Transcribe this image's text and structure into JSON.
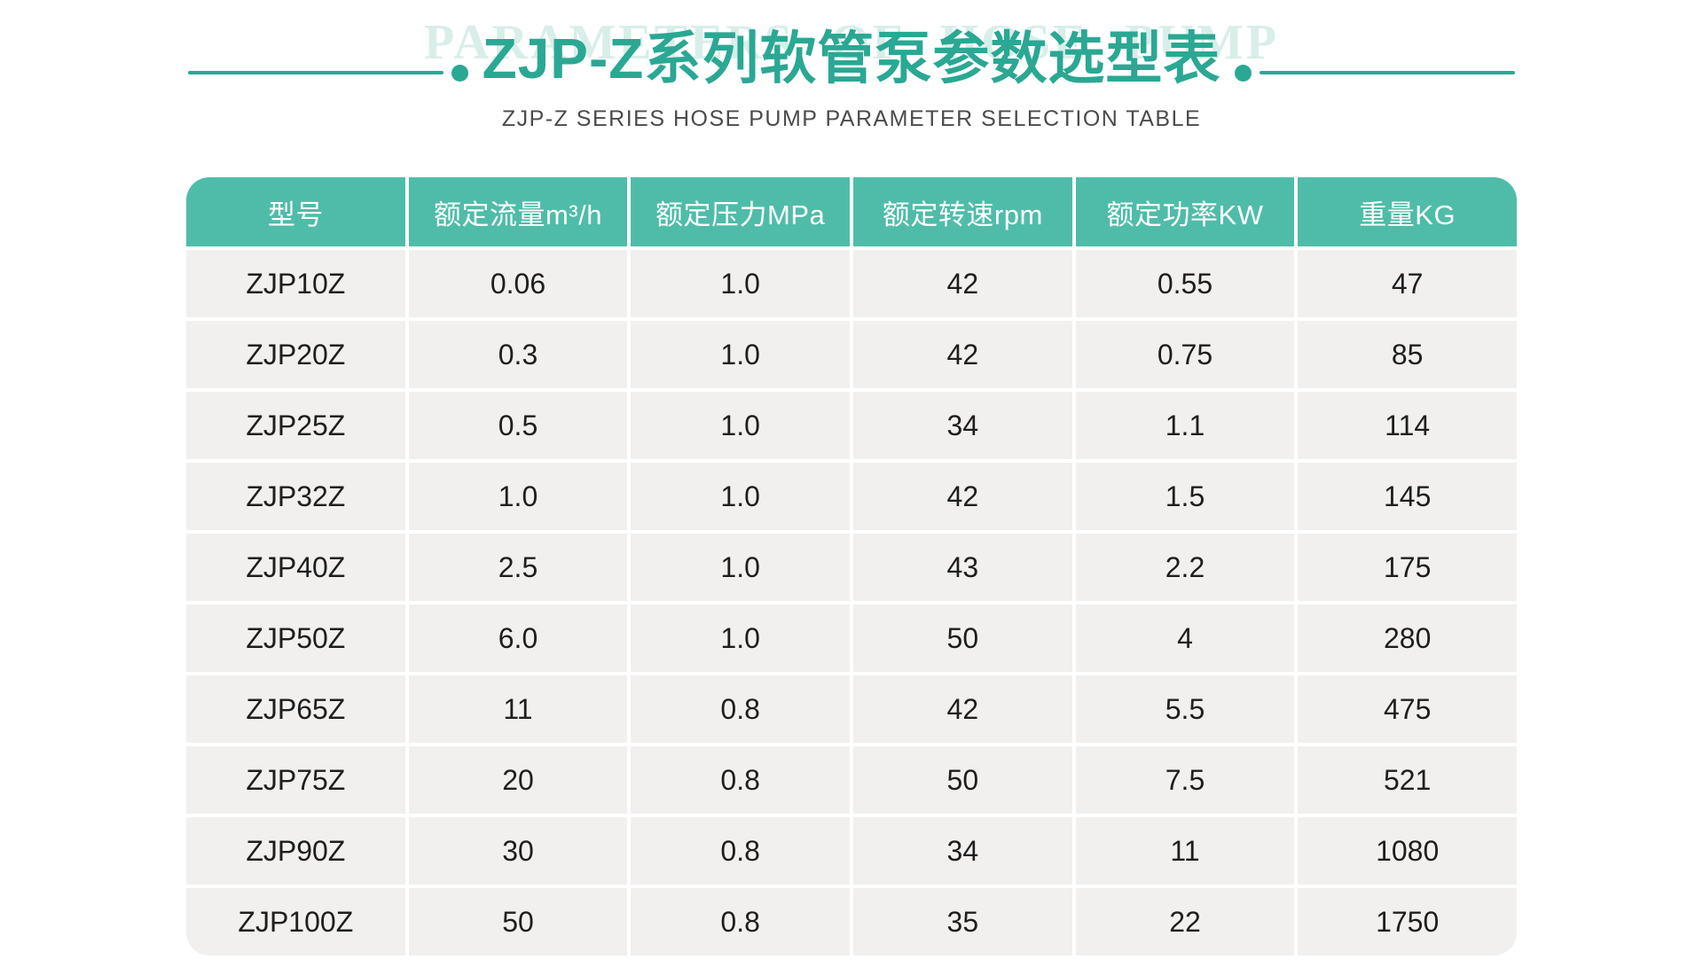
{
  "colors": {
    "page_bg": "#ffffff",
    "accent": "#2aa893",
    "watermark": "#d8eee9",
    "subtitle_text": "#4b4b4b",
    "header_bg": "#4fbca9",
    "row_bg": "#f1f0ef",
    "cell_text": "#1e1e1e"
  },
  "header": {
    "watermark": "PARAMETERS OF HOSE PUMP",
    "title": "ZJP-Z系列软管泵参数选型表",
    "subtitle": "ZJP-Z SERIES HOSE PUMP PARAMETER SELECTION TABLE"
  },
  "table": {
    "columns": [
      "型号",
      "额定流量m³/h",
      "额定压力MPa",
      "额定转速rpm",
      "额定功率KW",
      "重量KG"
    ],
    "rows": [
      [
        "ZJP10Z",
        "0.06",
        "1.0",
        "42",
        "0.55",
        "47"
      ],
      [
        "ZJP20Z",
        "0.3",
        "1.0",
        "42",
        "0.75",
        "85"
      ],
      [
        "ZJP25Z",
        "0.5",
        "1.0",
        "34",
        "1.1",
        "114"
      ],
      [
        "ZJP32Z",
        "1.0",
        "1.0",
        "42",
        "1.5",
        "145"
      ],
      [
        "ZJP40Z",
        "2.5",
        "1.0",
        "43",
        "2.2",
        "175"
      ],
      [
        "ZJP50Z",
        "6.0",
        "1.0",
        "50",
        "4",
        "280"
      ],
      [
        "ZJP65Z",
        "11",
        "0.8",
        "42",
        "5.5",
        "475"
      ],
      [
        "ZJP75Z",
        "20",
        "0.8",
        "50",
        "7.5",
        "521"
      ],
      [
        "ZJP90Z",
        "30",
        "0.8",
        "34",
        "11",
        "1080"
      ],
      [
        "ZJP100Z",
        "50",
        "0.8",
        "35",
        "22",
        "1750"
      ]
    ]
  }
}
